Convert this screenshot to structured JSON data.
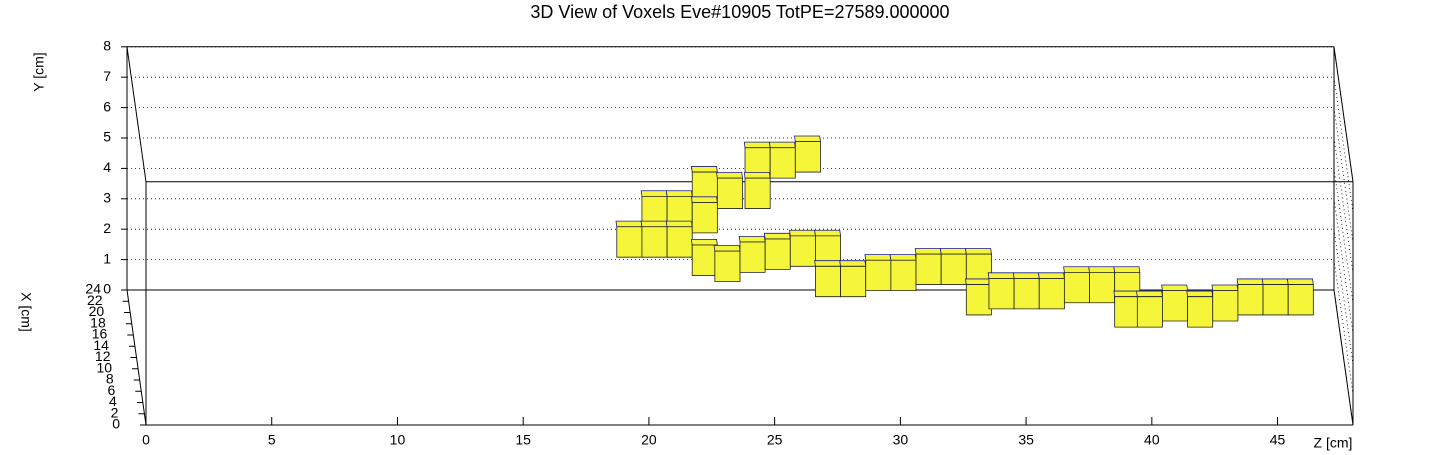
{
  "chart_data": {
    "type": "voxel3d",
    "title": "3D View of Voxels Eve#10905 TotPE=27589.000000",
    "x_label": "X [cm]",
    "y_label": "Y [cm]",
    "z_label": "Z [cm]",
    "xlim": [
      0,
      24
    ],
    "ylim": [
      0,
      8
    ],
    "zlim": [
      0,
      48
    ],
    "xticks": [
      0,
      2,
      4,
      6,
      8,
      10,
      12,
      14,
      16,
      18,
      20,
      22,
      24
    ],
    "yticks": [
      0,
      1,
      2,
      3,
      4,
      5,
      6,
      7,
      8
    ],
    "zticks": [
      0,
      5,
      10,
      15,
      20,
      25,
      30,
      35,
      40,
      45
    ],
    "grid": true,
    "color": "#f5f53a",
    "edge_color": "#1a1a8c",
    "voxel_size": 1,
    "voxels": {
      "z": [
        19.1,
        20.1,
        20.1,
        21.1,
        21.1,
        22.1,
        22.1,
        23.1,
        24.2,
        24.2,
        25.2,
        26.2,
        22.1,
        23.0,
        24.0,
        25.0,
        26.0,
        27.0,
        27.0,
        28.0,
        29.0,
        30.0,
        31.0,
        32.0,
        33.0,
        33.0,
        33.9,
        34.9,
        35.9,
        36.9,
        37.9,
        38.9,
        38.9,
        39.8,
        40.8,
        41.8,
        42.8,
        43.8,
        44.8,
        45.8
      ],
      "y": [
        3.3,
        4.3,
        3.3,
        4.3,
        3.3,
        5.1,
        4.1,
        4.9,
        5.9,
        4.9,
        5.9,
        6.1,
        2.7,
        2.5,
        2.8,
        2.9,
        3.0,
        3.0,
        2.0,
        2.0,
        2.2,
        2.2,
        2.4,
        2.4,
        2.4,
        1.4,
        1.6,
        1.6,
        1.6,
        1.8,
        1.8,
        1.8,
        1.0,
        1.0,
        1.2,
        1.0,
        1.2,
        1.4,
        1.4,
        1.4
      ],
      "x": [
        12,
        12,
        12,
        12,
        12,
        12,
        12,
        12,
        12,
        12,
        12,
        12,
        12,
        12,
        12,
        12,
        12,
        12,
        12,
        12,
        12,
        12,
        12,
        12,
        12,
        12,
        12,
        12,
        12,
        12,
        12,
        12,
        12,
        12,
        12,
        12,
        12,
        12,
        12,
        12
      ]
    }
  }
}
